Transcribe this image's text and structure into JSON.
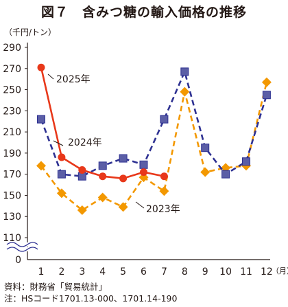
{
  "chart_data": {
    "type": "line",
    "title": "図７　含みつ糖の輸入価格の推移",
    "unit_label": "（千円/トン）",
    "x_unit_label": "（月）",
    "categories": [
      "1",
      "2",
      "3",
      "4",
      "5",
      "6",
      "7",
      "8",
      "9",
      "10",
      "11",
      "12"
    ],
    "y_ticks": [
      "290",
      "270",
      "250",
      "230",
      "210",
      "190",
      "170",
      "150",
      "130",
      "110",
      "0"
    ],
    "ylim": [
      110,
      290
    ],
    "axis_break": true,
    "grid": false,
    "series": [
      {
        "name": "2025年",
        "color": "#e8381a",
        "style": "solid",
        "marker": "circle",
        "values": [
          271,
          186,
          174,
          168,
          166,
          172,
          168,
          null,
          null,
          null,
          null,
          null
        ]
      },
      {
        "name": "2024年",
        "color": "#2e3192",
        "style": "dashed",
        "marker": "square",
        "values": [
          222,
          170,
          168,
          178,
          185,
          179,
          222,
          267,
          195,
          170,
          182,
          245
        ]
      },
      {
        "name": "2023年",
        "color": "#f39800",
        "style": "dashed",
        "marker": "diamond",
        "values": [
          178,
          152,
          136,
          148,
          139,
          167,
          154,
          248,
          172,
          176,
          178,
          257
        ]
      }
    ],
    "source_note": "資料：財務省「貿易統計」",
    "footnote": "注：HSコード1701.13-000、1701.14-190"
  }
}
